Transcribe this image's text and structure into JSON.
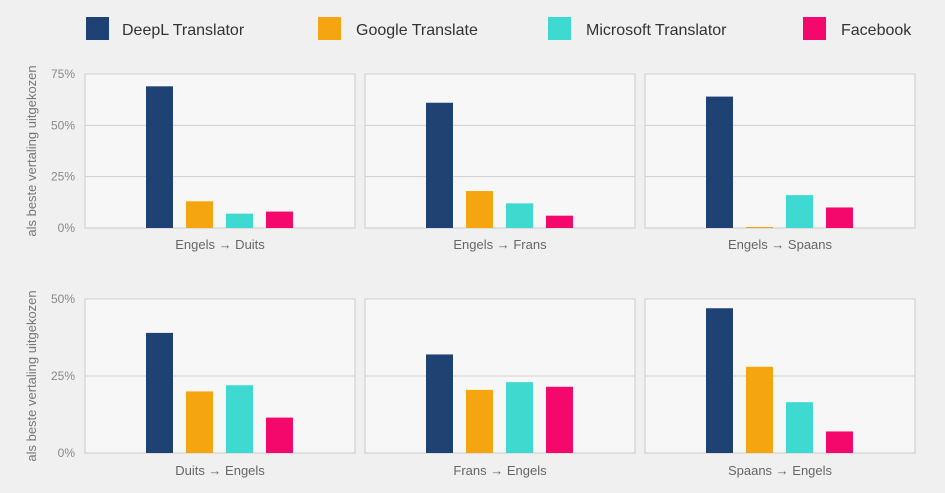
{
  "colors": {
    "background": "#f0f0f0",
    "panel_bg": "#f7f7f7",
    "panel_border": "#cccccc",
    "grid": "#d0d0d0"
  },
  "chart_data": {
    "type": "bar",
    "legend_position": "top",
    "grid": true,
    "series": [
      {
        "name": "DeepL Translator",
        "color": "#1f4274"
      },
      {
        "name": "Google Translate",
        "color": "#f5a510"
      },
      {
        "name": "Microsoft Translator",
        "color": "#3ed9d1"
      },
      {
        "name": "Facebook",
        "color": "#f5086b"
      }
    ],
    "rows": [
      {
        "ylabel": "als beste vertaling uitgekozen",
        "ylim": [
          0,
          75
        ],
        "yticks": [
          0,
          25,
          50,
          75
        ],
        "ytick_labels": [
          "0%",
          "25%",
          "50%",
          "75%"
        ],
        "panels": [
          {
            "category": "Engels → Duits",
            "values": [
              69,
              13,
              7,
              8
            ]
          },
          {
            "category": "Engels → Frans",
            "values": [
              61,
              18,
              12,
              6
            ]
          },
          {
            "category": "Engels → Spaans",
            "values": [
              64,
              0.5,
              16,
              10
            ]
          }
        ]
      },
      {
        "ylabel": "als beste vertaling uitgekozen",
        "ylim": [
          0,
          50
        ],
        "yticks": [
          0,
          25,
          50
        ],
        "ytick_labels": [
          "0%",
          "25%",
          "50%"
        ],
        "panels": [
          {
            "category": "Duits → Engels",
            "values": [
              39,
              20,
              22,
              11.5
            ]
          },
          {
            "category": "Frans → Engels",
            "values": [
              32,
              20.5,
              23,
              21.5
            ]
          },
          {
            "category": "Spaans → Engels",
            "values": [
              47,
              28,
              16.5,
              7
            ]
          }
        ]
      }
    ]
  }
}
